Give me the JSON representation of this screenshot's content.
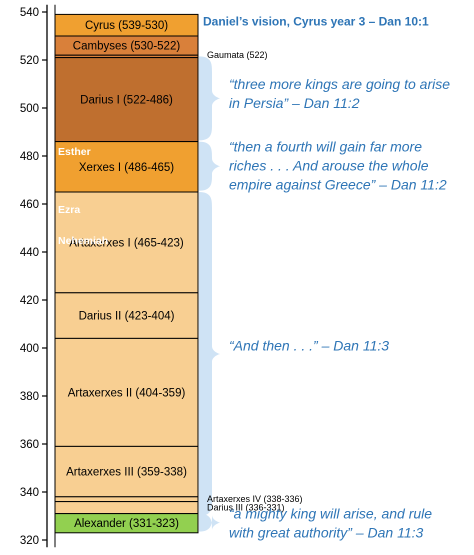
{
  "axis": {
    "ticks": [
      540,
      520,
      500,
      480,
      460,
      440,
      420,
      400,
      380,
      360,
      340,
      320
    ]
  },
  "reigns": [
    {
      "label": "Cyrus (539-530)",
      "start": 539,
      "end": 530,
      "color": "#f0a030"
    },
    {
      "label": "Cambyses (530-522)",
      "start": 530,
      "end": 522,
      "color": "#d9803a"
    },
    {
      "label": "",
      "start": 522,
      "end": 521,
      "color": "#d9803a"
    },
    {
      "label": "Darius I (522-486)",
      "start": 521,
      "end": 486,
      "color": "#bf6f2f"
    },
    {
      "label": "Xerxes I (486-465)",
      "start": 486,
      "end": 465,
      "color": "#f0a030"
    },
    {
      "label": "Artaxerxes I (465-423)",
      "start": 465,
      "end": 423,
      "color": "#f8cf92"
    },
    {
      "label": "Darius II (423-404)",
      "start": 423,
      "end": 404,
      "color": "#f8cf92"
    },
    {
      "label": "Artaxerxes II (404-359)",
      "start": 404,
      "end": 359,
      "color": "#f8cf92"
    },
    {
      "label": "Artaxerxes III (359-338)",
      "start": 359,
      "end": 338,
      "color": "#f8cf92"
    },
    {
      "label": "",
      "start": 338,
      "end": 336,
      "color": "#f8cf92"
    },
    {
      "label": "",
      "start": 336,
      "end": 331,
      "color": "#f8cf92"
    },
    {
      "label": "Alexander (331-323)",
      "start": 331,
      "end": 323,
      "color": "#92d050"
    }
  ],
  "inner_labels": [
    {
      "text": "Esther",
      "year": 482
    },
    {
      "text": "Ezra",
      "year": 458
    },
    {
      "text": "Nehemiah",
      "year": 445
    }
  ],
  "side_labels": [
    {
      "text": "Gaumata (522)",
      "year": 522
    },
    {
      "text": "Artaxerxes IV (338-336)",
      "year": 337
    },
    {
      "text": "Darius III (336-331)",
      "year": 333.5
    }
  ],
  "heading": "Daniel’s vision, Cyrus year 3 – Dan 10:1",
  "quotes": [
    {
      "lines": [
        "“three more kings are going to arise",
        "in Persia” – Dan 11:2"
      ],
      "year": 506
    },
    {
      "lines": [
        "“then a fourth will gain far more",
        "riches . . . And arouse the whole",
        "empire against Greece” – Dan 11:2"
      ],
      "year": 476
    },
    {
      "lines": [
        "“And then . . .” – Dan 11:3"
      ],
      "year": 401
    },
    {
      "lines": [
        "“a mighty king will arise, and rule",
        "with great authority” – Dan 11:3"
      ],
      "year": 327
    }
  ],
  "colors": {
    "heading": "#2e75b6",
    "quote": "#2e75b6",
    "brace": "#cfe3f5",
    "axis": "#000000",
    "inner_label": "#ffffff"
  }
}
